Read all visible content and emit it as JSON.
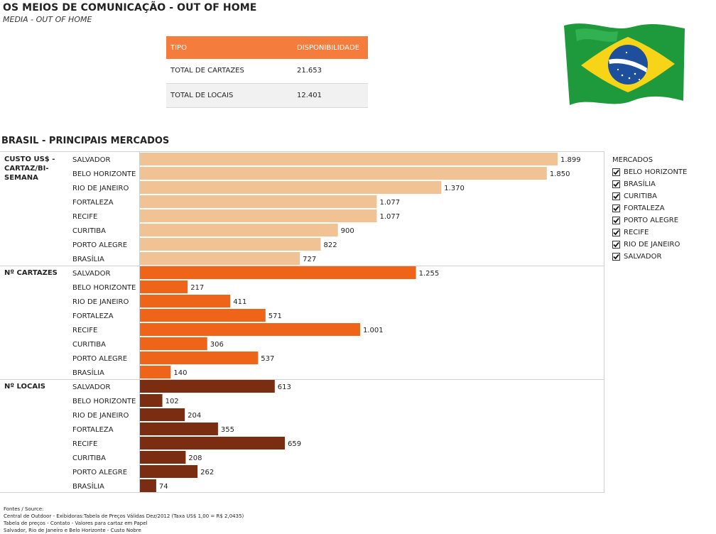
{
  "header": {
    "title": "OS MEIOS DE COMUNICAÇÃO - OUT OF HOME",
    "subtitle": "MEDIA - OUT OF HOME"
  },
  "summary": {
    "headers": [
      "TIPO",
      "DISPONIBILIDADE"
    ],
    "rows": [
      {
        "label": "TOTAL DE CARTAZES",
        "value": "21.653"
      },
      {
        "label": "TOTAL DE LOCAIS",
        "value": "12.401"
      }
    ]
  },
  "flag": {
    "icon": "brazil-flag-icon",
    "colors": {
      "green": "#1e9a3c",
      "yellow": "#f7d417",
      "blue": "#1d4f9c"
    }
  },
  "section_title": "BRASIL - PRINCIPAIS MERCADOS",
  "chart_data": {
    "type": "bar",
    "orientation": "horizontal",
    "categories": [
      "SALVADOR",
      "BELO HORIZONTE",
      "RIO DE JANEIRO",
      "FORTALEZA",
      "RECIFE",
      "CURITIBA",
      "PORTO ALEGRE",
      "BRASÍLIA"
    ],
    "panels": [
      {
        "name": "CUSTO US$ - CARTAZ/BI-SEMANA",
        "name_lines": [
          "CUSTO US$ -",
          "CARTAZ/BI-",
          "SEMANA"
        ],
        "color": "#f1c293",
        "values": [
          1899,
          1850,
          1370,
          1077,
          1077,
          900,
          822,
          727
        ],
        "labels": [
          "1.899",
          "1.850",
          "1.370",
          "1.077",
          "1.077",
          "900",
          "822",
          "727"
        ]
      },
      {
        "name": "Nº CARTAZES",
        "name_lines": [
          "Nº CARTAZES"
        ],
        "color": "#ee6519",
        "values": [
          1255,
          217,
          411,
          571,
          1001,
          306,
          537,
          140
        ],
        "labels": [
          "1.255",
          "217",
          "411",
          "571",
          "1.001",
          "306",
          "537",
          "140"
        ]
      },
      {
        "name": "Nº LOCAIS",
        "name_lines": [
          "Nº LOCAIS"
        ],
        "color": "#7b2d12",
        "values": [
          613,
          102,
          204,
          355,
          659,
          208,
          262,
          74
        ],
        "labels": [
          "613",
          "102",
          "204",
          "355",
          "659",
          "208",
          "262",
          "74"
        ]
      }
    ],
    "grid": false,
    "legend_position": "right"
  },
  "legend": {
    "title": "MERCADOS",
    "items": [
      "BELO HORIZONTE",
      "BRASÍLIA",
      "CURITIBA",
      "FORTALEZA",
      "PORTO ALEGRE",
      "RECIFE",
      "RIO DE JANEIRO",
      "SALVADOR"
    ]
  },
  "footer": {
    "lines": [
      "Fontes / Source:",
      "Central de Outdoor - Exibidoras:Tabela de Preços Válidas Dez/2012 (Taxa US$ 1,00 = R$ 2,0435)",
      "Tabela de preços - Contato - Valores para cartaz em Papel",
      "Salvador, Rio de Janeiro e Belo Horizonte - Custo Nobre"
    ]
  }
}
